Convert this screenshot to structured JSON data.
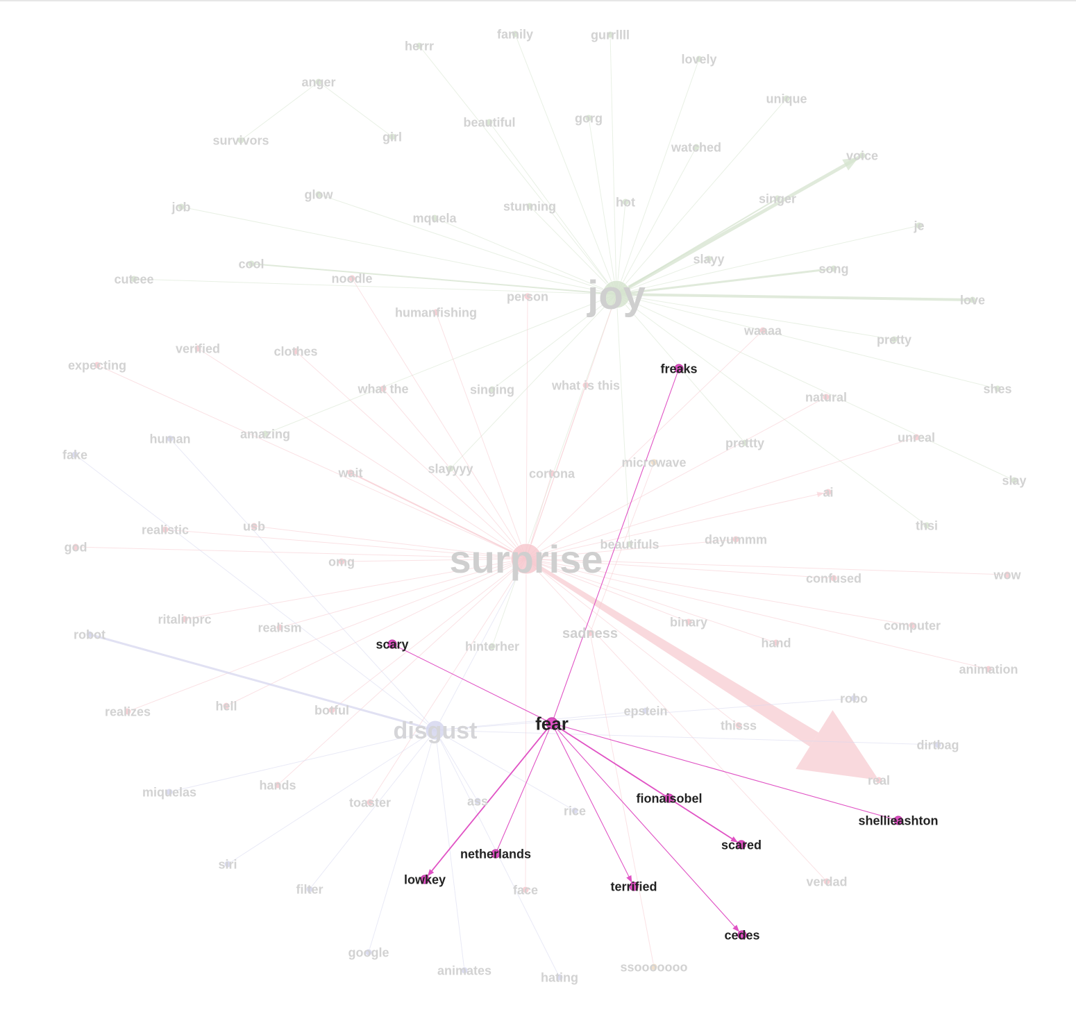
{
  "colors": {
    "joy": "#d6e4cf",
    "surprise": "#f7c9cf",
    "disgust": "#d7d8ef",
    "fear": "#e052c4",
    "sadness": "#f0dcc4",
    "faded_label": "#d2d2d2",
    "active_label": "#222222"
  },
  "graph": {
    "hubs": [
      {
        "id": "joy",
        "label": "joy",
        "category": "joy"
      },
      {
        "id": "surprise",
        "label": "surprise",
        "category": "surprise"
      },
      {
        "id": "disgust",
        "label": "disgust",
        "category": "disgust"
      },
      {
        "id": "fear",
        "label": "fear",
        "category": "fear",
        "highlight": true
      },
      {
        "id": "sadness",
        "label": "sadness",
        "category": "surprise"
      }
    ],
    "nodes": [
      {
        "id": "herrr",
        "label": "herrr",
        "category": "joy"
      },
      {
        "id": "family",
        "label": "family",
        "category": "joy"
      },
      {
        "id": "gurrllll",
        "label": "gurrllll",
        "category": "joy"
      },
      {
        "id": "lovely",
        "label": "lovely",
        "category": "joy"
      },
      {
        "id": "anger",
        "label": "anger",
        "category": "joy"
      },
      {
        "id": "unique",
        "label": "unique",
        "category": "joy"
      },
      {
        "id": "beautiful",
        "label": "beautiful",
        "category": "joy"
      },
      {
        "id": "gorg",
        "label": "gorg",
        "category": "joy"
      },
      {
        "id": "girl",
        "label": "girl",
        "category": "joy"
      },
      {
        "id": "survivors",
        "label": "survivors",
        "category": "joy"
      },
      {
        "id": "watched",
        "label": "watched",
        "category": "joy"
      },
      {
        "id": "voice",
        "label": "voice",
        "category": "joy"
      },
      {
        "id": "glow",
        "label": "glow",
        "category": "joy"
      },
      {
        "id": "singer",
        "label": "singer",
        "category": "joy"
      },
      {
        "id": "job",
        "label": "job",
        "category": "joy"
      },
      {
        "id": "stunning",
        "label": "stunning",
        "category": "joy"
      },
      {
        "id": "hot",
        "label": "hot",
        "category": "joy"
      },
      {
        "id": "mquela",
        "label": "mquela",
        "category": "joy"
      },
      {
        "id": "je",
        "label": "je",
        "category": "joy"
      },
      {
        "id": "slayy",
        "label": "slayy",
        "category": "joy"
      },
      {
        "id": "cool",
        "label": "cool",
        "category": "joy"
      },
      {
        "id": "song",
        "label": "song",
        "category": "joy"
      },
      {
        "id": "cuteee",
        "label": "cuteee",
        "category": "joy"
      },
      {
        "id": "noodle",
        "label": "noodle",
        "category": "surprise"
      },
      {
        "id": "love",
        "label": "love",
        "category": "joy"
      },
      {
        "id": "person",
        "label": "person",
        "category": "surprise"
      },
      {
        "id": "humanfishing",
        "label": "humanfishing",
        "category": "surprise"
      },
      {
        "id": "waaaa",
        "label": "waaaa",
        "category": "surprise"
      },
      {
        "id": "pretty",
        "label": "pretty",
        "category": "joy"
      },
      {
        "id": "verified",
        "label": "verified",
        "category": "surprise"
      },
      {
        "id": "clothes",
        "label": "clothes",
        "category": "surprise"
      },
      {
        "id": "expecting",
        "label": "expecting",
        "category": "surprise"
      },
      {
        "id": "freaks",
        "label": "freaks",
        "category": "fear",
        "highlight": true
      },
      {
        "id": "what-the",
        "label": "what the",
        "category": "surprise"
      },
      {
        "id": "singing",
        "label": "singing",
        "category": "joy"
      },
      {
        "id": "what-is-this",
        "label": "what is this",
        "category": "surprise"
      },
      {
        "id": "shes",
        "label": "shes",
        "category": "joy"
      },
      {
        "id": "natural",
        "label": "natural",
        "category": "surprise"
      },
      {
        "id": "human",
        "label": "human",
        "category": "disgust"
      },
      {
        "id": "amazing",
        "label": "amazing",
        "category": "joy"
      },
      {
        "id": "prettty",
        "label": "prettty",
        "category": "joy"
      },
      {
        "id": "unreal",
        "label": "unreal",
        "category": "surprise"
      },
      {
        "id": "fake",
        "label": "fake",
        "category": "disgust"
      },
      {
        "id": "wait",
        "label": "wait",
        "category": "surprise"
      },
      {
        "id": "slayyyy",
        "label": "slayyyy",
        "category": "joy"
      },
      {
        "id": "cortona",
        "label": "cortona",
        "category": "surprise"
      },
      {
        "id": "microwave",
        "label": "microwave",
        "category": "sadness"
      },
      {
        "id": "slay",
        "label": "slay",
        "category": "joy"
      },
      {
        "id": "ai",
        "label": "ai",
        "category": "surprise"
      },
      {
        "id": "realistic",
        "label": "realistic",
        "category": "surprise"
      },
      {
        "id": "usb",
        "label": "usb",
        "category": "surprise"
      },
      {
        "id": "thsi",
        "label": "thsi",
        "category": "joy"
      },
      {
        "id": "god",
        "label": "god",
        "category": "surprise"
      },
      {
        "id": "dayummm",
        "label": "dayummm",
        "category": "surprise"
      },
      {
        "id": "beautifuls",
        "label": "beautifuls",
        "category": "joy"
      },
      {
        "id": "omg",
        "label": "omg",
        "category": "surprise"
      },
      {
        "id": "confused",
        "label": "confused",
        "category": "surprise"
      },
      {
        "id": "wow",
        "label": "wow",
        "category": "surprise"
      },
      {
        "id": "ritalinprc",
        "label": "ritalinprc",
        "category": "surprise"
      },
      {
        "id": "binary",
        "label": "binary",
        "category": "surprise"
      },
      {
        "id": "robot",
        "label": "robot",
        "category": "disgust"
      },
      {
        "id": "realism",
        "label": "realism",
        "category": "surprise"
      },
      {
        "id": "scary",
        "label": "scary",
        "category": "fear",
        "highlight": true
      },
      {
        "id": "hinterher",
        "label": "hinterher",
        "category": "joy"
      },
      {
        "id": "computer",
        "label": "computer",
        "category": "surprise"
      },
      {
        "id": "hand",
        "label": "hand",
        "category": "surprise"
      },
      {
        "id": "animation",
        "label": "animation",
        "category": "surprise"
      },
      {
        "id": "realizes",
        "label": "realizes",
        "category": "surprise"
      },
      {
        "id": "hell",
        "label": "hell",
        "category": "surprise"
      },
      {
        "id": "botful",
        "label": "botful",
        "category": "surprise"
      },
      {
        "id": "epstein",
        "label": "epstein",
        "category": "disgust"
      },
      {
        "id": "robo",
        "label": "robo",
        "category": "disgust"
      },
      {
        "id": "thisss",
        "label": "thisss",
        "category": "surprise"
      },
      {
        "id": "dirtbag",
        "label": "dirtbag",
        "category": "disgust"
      },
      {
        "id": "real",
        "label": "real",
        "category": "surprise"
      },
      {
        "id": "miquelas",
        "label": "miquelas",
        "category": "disgust"
      },
      {
        "id": "hands",
        "label": "hands",
        "category": "surprise"
      },
      {
        "id": "toaster",
        "label": "toaster",
        "category": "surprise"
      },
      {
        "id": "ass",
        "label": "ass",
        "category": "disgust"
      },
      {
        "id": "rice",
        "label": "rice",
        "category": "disgust"
      },
      {
        "id": "fionaisobel",
        "label": "fionaisobel",
        "category": "fear",
        "highlight": true
      },
      {
        "id": "shellieashton",
        "label": "shellieashton",
        "category": "fear",
        "highlight": true
      },
      {
        "id": "scared",
        "label": "scared",
        "category": "fear",
        "highlight": true
      },
      {
        "id": "netherlands",
        "label": "netherlands",
        "category": "fear",
        "highlight": true
      },
      {
        "id": "siri",
        "label": "siri",
        "category": "disgust"
      },
      {
        "id": "lowkey",
        "label": "lowkey",
        "category": "fear",
        "highlight": true
      },
      {
        "id": "filter",
        "label": "filter",
        "category": "disgust"
      },
      {
        "id": "face",
        "label": "face",
        "category": "surprise"
      },
      {
        "id": "terrified",
        "label": "terrified",
        "category": "fear",
        "highlight": true
      },
      {
        "id": "verdad",
        "label": "verdad",
        "category": "surprise"
      },
      {
        "id": "cedes",
        "label": "cedes",
        "category": "fear",
        "highlight": true
      },
      {
        "id": "google",
        "label": "google",
        "category": "disgust"
      },
      {
        "id": "animates",
        "label": "animates",
        "category": "disgust"
      },
      {
        "id": "hating",
        "label": "hating",
        "category": "disgust"
      },
      {
        "id": "ssooooooo",
        "label": "ssooooooo",
        "category": "sadness"
      }
    ],
    "edges": [
      {
        "source": "joy",
        "target": "voice",
        "weight": 5,
        "arrow": true
      },
      {
        "source": "joy",
        "target": "love",
        "weight": 4
      },
      {
        "source": "joy",
        "target": "song",
        "weight": 3
      },
      {
        "source": "joy",
        "target": "cool",
        "weight": 2
      },
      {
        "source": "joy",
        "target": "singer",
        "weight": 2
      },
      {
        "source": "joy",
        "target": "herrr",
        "weight": 1
      },
      {
        "source": "joy",
        "target": "family",
        "weight": 1
      },
      {
        "source": "joy",
        "target": "gurrllll",
        "weight": 1
      },
      {
        "source": "joy",
        "target": "lovely",
        "weight": 1
      },
      {
        "source": "joy",
        "target": "unique",
        "weight": 1
      },
      {
        "source": "joy",
        "target": "beautiful",
        "weight": 1
      },
      {
        "source": "joy",
        "target": "gorg",
        "weight": 1
      },
      {
        "source": "joy",
        "target": "watched",
        "weight": 1
      },
      {
        "source": "joy",
        "target": "glow",
        "weight": 1
      },
      {
        "source": "joy",
        "target": "job",
        "weight": 1
      },
      {
        "source": "joy",
        "target": "stunning",
        "weight": 1
      },
      {
        "source": "joy",
        "target": "hot",
        "weight": 1
      },
      {
        "source": "joy",
        "target": "mquela",
        "weight": 1
      },
      {
        "source": "joy",
        "target": "je",
        "weight": 1
      },
      {
        "source": "joy",
        "target": "slayy",
        "weight": 1
      },
      {
        "source": "joy",
        "target": "cuteee",
        "weight": 1
      },
      {
        "source": "joy",
        "target": "pretty",
        "weight": 1
      },
      {
        "source": "joy",
        "target": "shes",
        "weight": 1
      },
      {
        "source": "joy",
        "target": "singing",
        "weight": 1
      },
      {
        "source": "joy",
        "target": "amazing",
        "weight": 1
      },
      {
        "source": "joy",
        "target": "prettty",
        "weight": 1
      },
      {
        "source": "joy",
        "target": "slayyyy",
        "weight": 1
      },
      {
        "source": "joy",
        "target": "slay",
        "weight": 1
      },
      {
        "source": "joy",
        "target": "thsi",
        "weight": 1
      },
      {
        "source": "joy",
        "target": "beautifuls",
        "weight": 1
      },
      {
        "source": "joy",
        "target": "hinterher",
        "weight": 1
      },
      {
        "source": "anger",
        "target": "girl",
        "weight": 1
      },
      {
        "source": "anger",
        "target": "survivors",
        "weight": 1
      },
      {
        "source": "surprise",
        "target": "real",
        "weight": 12,
        "arrow": true
      },
      {
        "source": "surprise",
        "target": "noodle",
        "weight": 1
      },
      {
        "source": "surprise",
        "target": "person",
        "weight": 1
      },
      {
        "source": "surprise",
        "target": "humanfishing",
        "weight": 1
      },
      {
        "source": "surprise",
        "target": "waaaa",
        "weight": 1
      },
      {
        "source": "surprise",
        "target": "verified",
        "weight": 1
      },
      {
        "source": "surprise",
        "target": "clothes",
        "weight": 1
      },
      {
        "source": "surprise",
        "target": "expecting",
        "weight": 1
      },
      {
        "source": "surprise",
        "target": "what-the",
        "weight": 1
      },
      {
        "source": "surprise",
        "target": "what-is-this",
        "weight": 1
      },
      {
        "source": "surprise",
        "target": "natural",
        "weight": 1
      },
      {
        "source": "surprise",
        "target": "unreal",
        "weight": 1
      },
      {
        "source": "surprise",
        "target": "wait",
        "weight": 2
      },
      {
        "source": "surprise",
        "target": "cortona",
        "weight": 1
      },
      {
        "source": "surprise",
        "target": "ai",
        "weight": 1,
        "arrow": true
      },
      {
        "source": "surprise",
        "target": "realistic",
        "weight": 1
      },
      {
        "source": "surprise",
        "target": "usb",
        "weight": 1
      },
      {
        "source": "surprise",
        "target": "god",
        "weight": 1
      },
      {
        "source": "surprise",
        "target": "dayummm",
        "weight": 1
      },
      {
        "source": "surprise",
        "target": "omg",
        "weight": 1
      },
      {
        "source": "surprise",
        "target": "confused",
        "weight": 1
      },
      {
        "source": "surprise",
        "target": "wow",
        "weight": 1
      },
      {
        "source": "surprise",
        "target": "ritalinprc",
        "weight": 1
      },
      {
        "source": "surprise",
        "target": "binary",
        "weight": 1
      },
      {
        "source": "surprise",
        "target": "realism",
        "weight": 1
      },
      {
        "source": "surprise",
        "target": "computer",
        "weight": 1
      },
      {
        "source": "surprise",
        "target": "hand",
        "weight": 1
      },
      {
        "source": "surprise",
        "target": "animation",
        "weight": 1
      },
      {
        "source": "surprise",
        "target": "realizes",
        "weight": 1
      },
      {
        "source": "surprise",
        "target": "hell",
        "weight": 1
      },
      {
        "source": "surprise",
        "target": "botful",
        "weight": 1
      },
      {
        "source": "surprise",
        "target": "thisss",
        "weight": 1
      },
      {
        "source": "surprise",
        "target": "hands",
        "weight": 1
      },
      {
        "source": "surprise",
        "target": "toaster",
        "weight": 1
      },
      {
        "source": "surprise",
        "target": "face",
        "weight": 1
      },
      {
        "source": "surprise",
        "target": "verdad",
        "weight": 1
      },
      {
        "source": "surprise",
        "target": "joy",
        "weight": 1
      },
      {
        "source": "disgust",
        "target": "robot",
        "weight": 3
      },
      {
        "source": "disgust",
        "target": "human",
        "weight": 1
      },
      {
        "source": "disgust",
        "target": "fake",
        "weight": 1
      },
      {
        "source": "disgust",
        "target": "epstein",
        "weight": 1
      },
      {
        "source": "disgust",
        "target": "robo",
        "weight": 1
      },
      {
        "source": "disgust",
        "target": "dirtbag",
        "weight": 1
      },
      {
        "source": "disgust",
        "target": "miquelas",
        "weight": 1
      },
      {
        "source": "disgust",
        "target": "ass",
        "weight": 1
      },
      {
        "source": "disgust",
        "target": "rice",
        "weight": 1
      },
      {
        "source": "disgust",
        "target": "siri",
        "weight": 1
      },
      {
        "source": "disgust",
        "target": "filter",
        "weight": 1
      },
      {
        "source": "disgust",
        "target": "google",
        "weight": 1
      },
      {
        "source": "disgust",
        "target": "animates",
        "weight": 1
      },
      {
        "source": "disgust",
        "target": "hating",
        "weight": 1
      },
      {
        "source": "disgust",
        "target": "surprise",
        "weight": 1
      },
      {
        "source": "sadness",
        "target": "microwave",
        "weight": 1
      },
      {
        "source": "sadness",
        "target": "ssooooooo",
        "weight": 1
      },
      {
        "source": "fear",
        "target": "freaks",
        "weight": 1,
        "highlight": true
      },
      {
        "source": "fear",
        "target": "scary",
        "weight": 1,
        "highlight": true
      },
      {
        "source": "fear",
        "target": "fionaisobel",
        "weight": 1,
        "highlight": true
      },
      {
        "source": "fear",
        "target": "shellieashton",
        "weight": 1,
        "highlight": true
      },
      {
        "source": "fear",
        "target": "scared",
        "weight": 2,
        "highlight": true,
        "arrow": true
      },
      {
        "source": "fear",
        "target": "netherlands",
        "weight": 1,
        "highlight": true
      },
      {
        "source": "fear",
        "target": "lowkey",
        "weight": 2,
        "highlight": true,
        "arrow": true
      },
      {
        "source": "fear",
        "target": "terrified",
        "weight": 1,
        "highlight": true,
        "arrow": true
      },
      {
        "source": "fear",
        "target": "cedes",
        "weight": 1,
        "highlight": true,
        "arrow": true
      }
    ]
  }
}
